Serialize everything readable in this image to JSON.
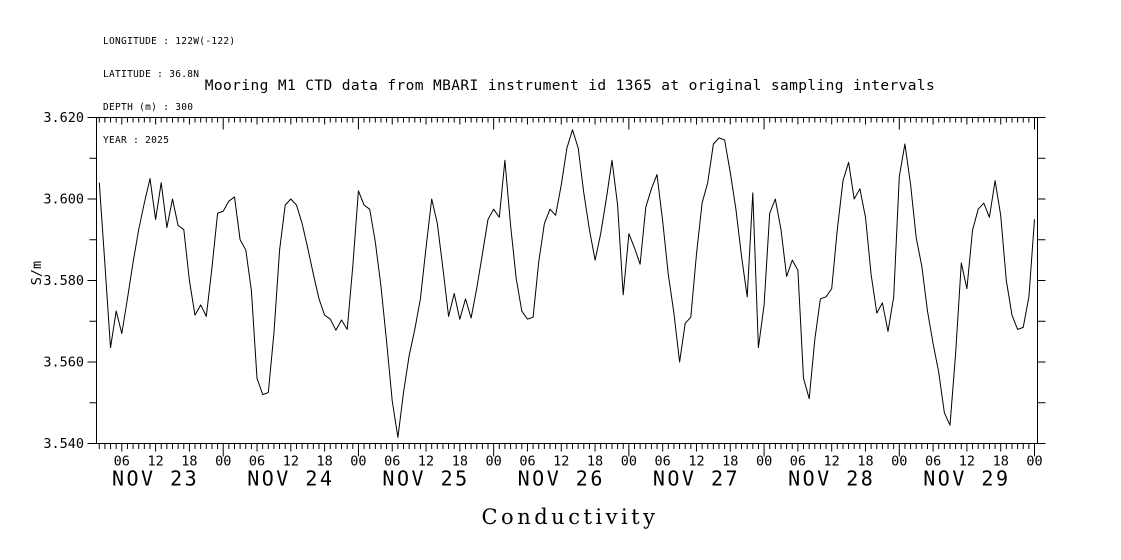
{
  "meta": {
    "longitude": "LONGITUDE : 122W(-122)",
    "latitude": "LATITUDE : 36.8N",
    "depth": "DEPTH (m) : 300",
    "year": "YEAR : 2025"
  },
  "title": "Mooring M1 CTD data from MBARI instrument id 1365 at original sampling intervals",
  "footer_label": "Conductivity",
  "chart_data": {
    "type": "line",
    "title": "Mooring M1 CTD data from MBARI instrument id 1365 at original sampling intervals",
    "xlabel": "Conductivity",
    "ylabel": "S/m",
    "ylim": [
      3.54,
      3.62
    ],
    "ytick_labels": [
      "3.540",
      "3.560",
      "3.580",
      "3.600",
      "3.620"
    ],
    "ytick_values": [
      3.54,
      3.56,
      3.58,
      3.6,
      3.62
    ],
    "ytick_minor_step": 0.01,
    "grid": false,
    "line_color": "#000000",
    "background_color": "#ffffff",
    "x_unit": "hours since 2025-11-23 00:00",
    "x_start_hour": 2,
    "x_step_hours": 1,
    "x_hour_label_cycle": [
      "00",
      "06",
      "12",
      "18"
    ],
    "x_label_every_hours": 6,
    "x_day_tick_every_hours": 24,
    "x_day_labels": [
      "NOV 23",
      "NOV 24",
      "NOV 25",
      "NOV 26",
      "NOV 27",
      "NOV 28",
      "NOV 29"
    ],
    "series": [
      {
        "name": "Conductivity",
        "unit": "S/m",
        "values": [
          3.604,
          3.584,
          3.5635,
          3.5725,
          3.567,
          3.5755,
          3.5845,
          3.5925,
          3.599,
          3.605,
          3.595,
          3.604,
          3.593,
          3.6,
          3.5935,
          3.5925,
          3.58,
          3.5715,
          3.574,
          3.5712,
          3.583,
          3.5965,
          3.597,
          3.5995,
          3.6005,
          3.59,
          3.5875,
          3.5775,
          3.556,
          3.552,
          3.5525,
          3.567,
          3.5875,
          3.5985,
          3.6,
          3.5985,
          3.594,
          3.588,
          3.5815,
          3.5755,
          3.5715,
          3.5705,
          3.5678,
          3.5703,
          3.568,
          3.5835,
          3.602,
          3.5985,
          3.5975,
          3.5895,
          3.5785,
          3.565,
          3.5505,
          3.5415,
          3.5525,
          3.5615,
          3.568,
          3.5755,
          3.588,
          3.6,
          3.594,
          3.583,
          3.5712,
          3.5768,
          3.5705,
          3.5755,
          3.5708,
          3.578,
          3.5865,
          3.595,
          3.5975,
          3.5955,
          3.6095,
          3.5935,
          3.5805,
          3.5725,
          3.5705,
          3.571,
          3.5845,
          3.594,
          3.5975,
          3.596,
          3.6035,
          3.6125,
          3.617,
          3.6125,
          3.6015,
          3.5925,
          3.585,
          3.5915,
          3.6,
          3.6095,
          3.5985,
          3.5765,
          3.5915,
          3.588,
          3.584,
          3.598,
          3.6025,
          3.606,
          3.5945,
          3.5815,
          3.572,
          3.56,
          3.5695,
          3.571,
          3.5865,
          3.599,
          3.604,
          3.6135,
          3.615,
          3.6145,
          3.6065,
          3.5975,
          3.586,
          3.576,
          3.6015,
          3.5635,
          3.574,
          3.5965,
          3.6,
          3.5925,
          3.581,
          3.585,
          3.5825,
          3.556,
          3.551,
          3.5655,
          3.5755,
          3.576,
          3.578,
          3.5925,
          3.6045,
          3.609,
          3.6,
          3.6025,
          3.5955,
          3.5815,
          3.572,
          3.5745,
          3.5675,
          3.576,
          3.6055,
          3.6135,
          3.6035,
          3.5905,
          3.5835,
          3.5725,
          3.5645,
          3.5575,
          3.5475,
          3.5445,
          3.562,
          3.5843,
          3.578,
          3.5923,
          3.5975,
          3.599,
          3.5955,
          3.6045,
          3.596,
          3.58,
          3.5715,
          3.568,
          3.5685,
          3.576,
          3.595
        ]
      }
    ]
  }
}
